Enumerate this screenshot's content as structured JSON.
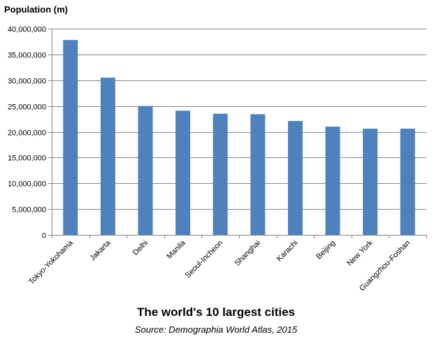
{
  "chart_data": {
    "type": "bar",
    "title": "The world's 10 largest cities",
    "subtitle": "Source: Demographia World Atlas, 2015",
    "ylabel": "Population (m)",
    "xlabel": "",
    "categories": [
      "Tokyo-Yokohama",
      "Jakarta",
      "Delhi",
      "Manila",
      "Seoul-Incheon",
      "Shanghai",
      "Karachi",
      "Beijing",
      "New York",
      "Guangzhou-Foshan"
    ],
    "values": [
      37800000,
      30500000,
      25000000,
      24100000,
      23500000,
      23400000,
      22100000,
      21000000,
      20600000,
      20600000
    ],
    "ylim": [
      0,
      40000000
    ],
    "yticks": [
      0,
      5000000,
      10000000,
      15000000,
      20000000,
      25000000,
      30000000,
      35000000,
      40000000
    ],
    "ytick_labels": [
      "0",
      "5,000,000",
      "10,000,000",
      "15,000,000",
      "20,000,000",
      "25,000,000",
      "30,000,000",
      "35,000,000",
      "40,000,000"
    ],
    "grid": true,
    "legend": "none",
    "colors": {
      "bar": "#4f81bd",
      "grid": "#868686",
      "axis": "#868686"
    }
  }
}
